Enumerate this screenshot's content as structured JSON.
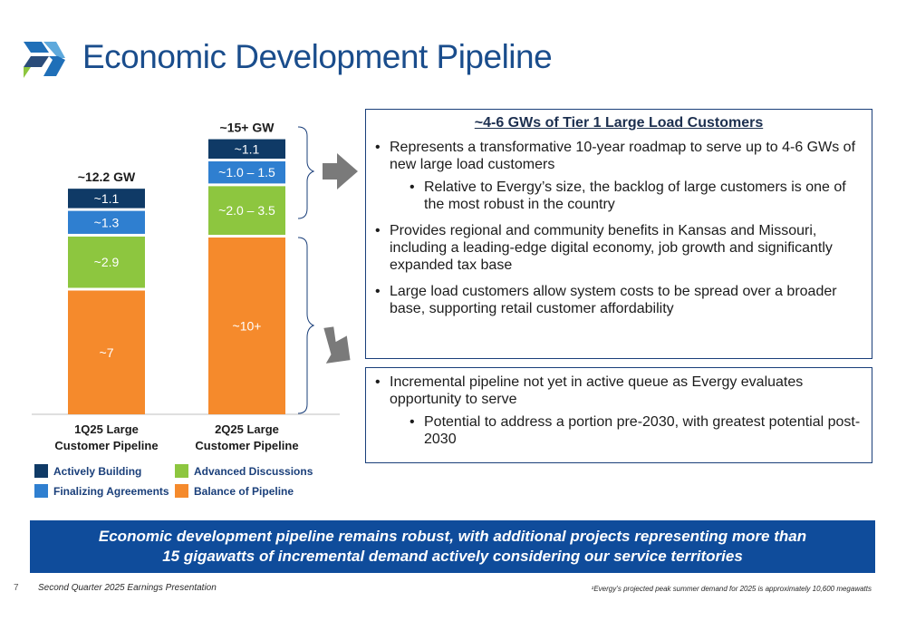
{
  "title": "Economic Development Pipeline",
  "colors": {
    "actively_building": "#0f3a66",
    "finalizing_agreements": "#2f7fd0",
    "advanced_discussions": "#8dc63f",
    "balance_of_pipeline": "#f58a2c",
    "title": "#1a4d8c",
    "banner": "#0f4c9b"
  },
  "chart_data": {
    "type": "bar",
    "stacked": true,
    "categories": [
      "1Q25 Large Customer Pipeline",
      "2Q25 Large Customer Pipeline"
    ],
    "category_lines": [
      [
        "1Q25 Large",
        "Customer Pipeline"
      ],
      [
        "2Q25 Large",
        "Customer Pipeline"
      ]
    ],
    "totals": [
      "~12.2 GW",
      "~15+ GW"
    ],
    "series": [
      {
        "name": "Balance of Pipeline",
        "values": [
          7,
          10
        ],
        "labels": [
          "~7",
          "~10+"
        ],
        "color": "#f58a2c"
      },
      {
        "name": "Advanced Discussions",
        "values": [
          2.9,
          2.75
        ],
        "labels": [
          "~2.9",
          "~2.0 – 3.5"
        ],
        "color": "#8dc63f"
      },
      {
        "name": "Finalizing Agreements",
        "values": [
          1.3,
          1.25
        ],
        "labels": [
          "~1.3",
          "~1.0 – 1.5"
        ],
        "color": "#2f7fd0"
      },
      {
        "name": "Actively Building",
        "values": [
          1.1,
          1.1
        ],
        "labels": [
          "~1.1",
          "~1.1"
        ],
        "color": "#0f3a66"
      }
    ],
    "ylim": [
      0,
      16
    ]
  },
  "legend": [
    {
      "label": "Actively Building",
      "color": "#0f3a66"
    },
    {
      "label": "Advanced Discussions",
      "color": "#8dc63f"
    },
    {
      "label": "Finalizing Agreements",
      "color": "#2f7fd0"
    },
    {
      "label": "Balance of Pipeline",
      "color": "#f58a2c"
    }
  ],
  "box1": {
    "heading": "~4-6 GWs of Tier 1 Large Load Customers",
    "bullets": [
      "Represents a transformative 10-year roadmap to serve up to 4-6 GWs of new large load customers",
      "Relative to Evergy’s size, the backlog of large customers is one of the most robust in the country",
      "Provides regional and community benefits in Kansas and Missouri, including a leading-edge digital economy, job growth and significantly expanded tax base",
      "Large load customers allow system costs to be spread over a broader base, supporting retail customer affordability"
    ]
  },
  "box2": {
    "bullets": [
      "Incremental pipeline not yet in active queue as Evergy evaluates opportunity to serve",
      "Potential to address a portion pre-2030, with greatest potential post-2030"
    ]
  },
  "banner": {
    "line1": "Economic development pipeline remains robust, with additional projects representing more than",
    "line2": "15 gigawatts of incremental demand actively considering our service territories"
  },
  "footer": {
    "page_number": "7",
    "left": "Second Quarter 2025 Earnings Presentation",
    "right": "¹Evergy’s projected peak summer demand for 2025 is approximately 10,600 megawatts"
  }
}
